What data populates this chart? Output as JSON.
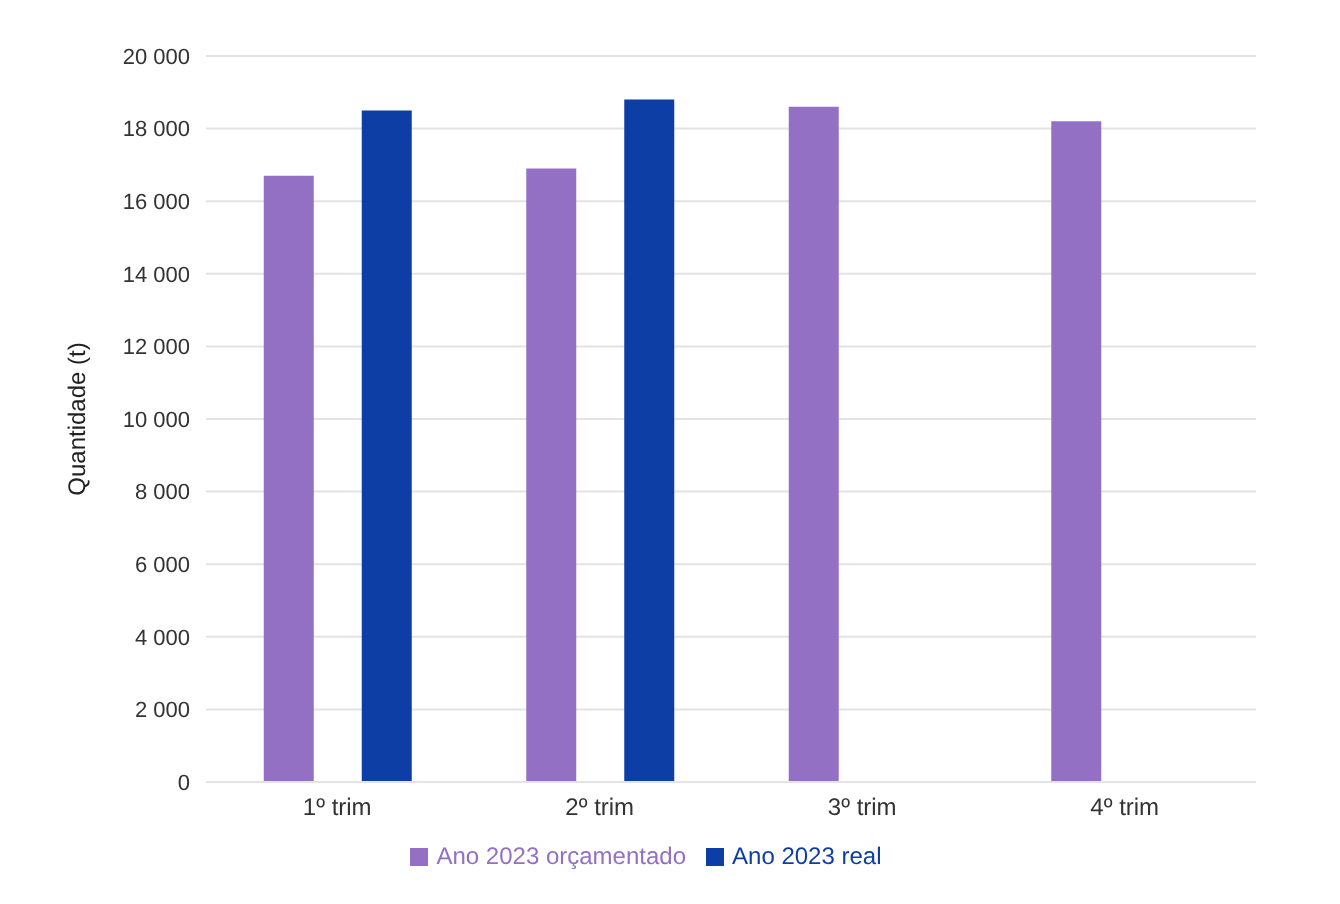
{
  "chart_data": {
    "type": "bar",
    "ylabel": "Quantidade (t)",
    "categories": [
      "1º trim",
      "2º trim",
      "3º trim",
      "4º trim"
    ],
    "series": [
      {
        "name": "Ano 2023 orçamentado",
        "color": "#9370c4",
        "values": [
          16700,
          16900,
          18600,
          18200
        ]
      },
      {
        "name": "Ano 2023 real",
        "color": "#0d3ea6",
        "values": [
          18500,
          18800,
          null,
          null
        ]
      }
    ],
    "ylim": [
      0,
      20000
    ],
    "yticks": [
      {
        "value": 0,
        "label": "0"
      },
      {
        "value": 2000,
        "label": "2 000"
      },
      {
        "value": 4000,
        "label": "4 000"
      },
      {
        "value": 6000,
        "label": "6 000"
      },
      {
        "value": 8000,
        "label": "8 000"
      },
      {
        "value": 10000,
        "label": "10 000"
      },
      {
        "value": 12000,
        "label": "12 000"
      },
      {
        "value": 14000,
        "label": "14 000"
      },
      {
        "value": 16000,
        "label": "16 000"
      },
      {
        "value": 18000,
        "label": "18 000"
      },
      {
        "value": 20000,
        "label": "20 000"
      }
    ],
    "grid": "y",
    "legend": "bottom"
  }
}
